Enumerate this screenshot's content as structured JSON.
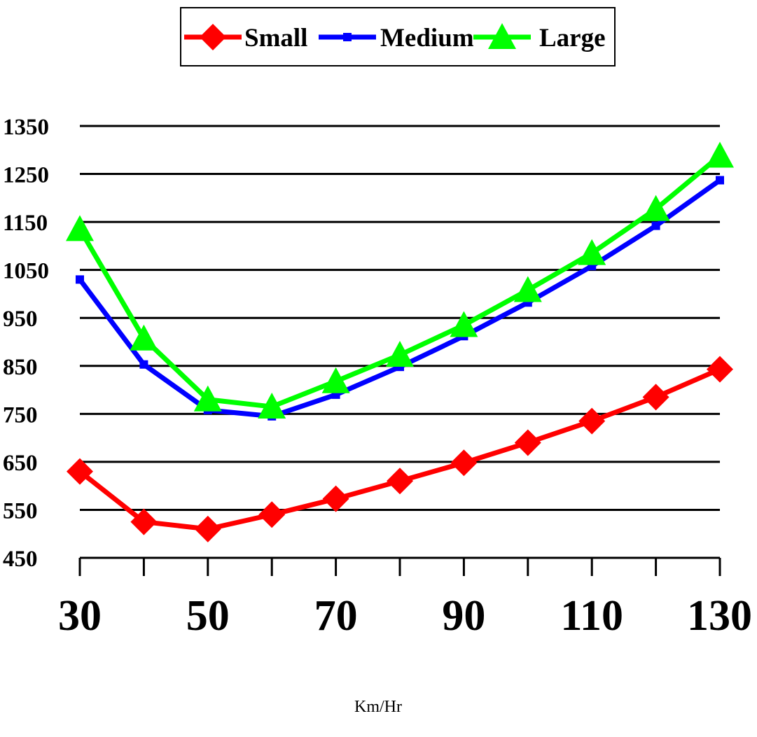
{
  "chart_data": {
    "type": "line",
    "title": "",
    "xlabel": "Km/Hr",
    "ylabel": "",
    "x": [
      30,
      40,
      50,
      60,
      70,
      80,
      90,
      100,
      110,
      120,
      130
    ],
    "x_tick_labels": [
      "30",
      "50",
      "70",
      "90",
      "110",
      "130"
    ],
    "x_tick_values": [
      30,
      50,
      70,
      90,
      110,
      130
    ],
    "y_tick_labels": [
      "1350",
      "1250",
      "1150",
      "1050",
      "950",
      "850",
      "750",
      "650",
      "550",
      "450"
    ],
    "y_tick_values": [
      1350,
      1250,
      1150,
      1050,
      950,
      850,
      750,
      650,
      550,
      450
    ],
    "xlim": [
      30,
      130
    ],
    "ylim": [
      450,
      1350
    ],
    "grid": "horizontal",
    "legend_position": "top-center",
    "series": [
      {
        "name": "Small",
        "color": "#ff0000",
        "marker": "diamond",
        "values": [
          630,
          525,
          510,
          540,
          573,
          610,
          648,
          690,
          735,
          785,
          843
        ]
      },
      {
        "name": "Medium",
        "color": "#0000ff",
        "marker": "square",
        "values": [
          1030,
          853,
          758,
          745,
          790,
          848,
          912,
          982,
          1058,
          1142,
          1237
        ]
      },
      {
        "name": "Large",
        "color": "#00ff00",
        "marker": "triangle",
        "values": [
          1135,
          907,
          780,
          765,
          818,
          873,
          935,
          1008,
          1085,
          1177,
          1288
        ]
      }
    ]
  }
}
